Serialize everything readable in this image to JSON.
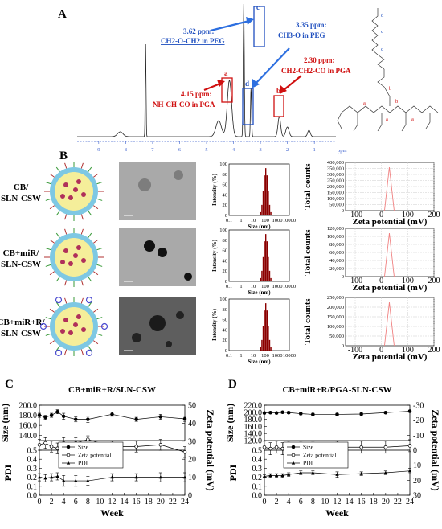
{
  "panels": [
    "A",
    "B",
    "C",
    "D"
  ],
  "nmr": {
    "peak_labels": [
      "a",
      "b",
      "c",
      "d"
    ],
    "annotations": [
      {
        "ppm": "3.62 ppm:",
        "text": "CH2-O-CH2 in PEG",
        "color": "#1f4fbf"
      },
      {
        "ppm": "3.35 ppm:",
        "text": "CH3-O in PEG",
        "color": "#1f4fbf"
      },
      {
        "ppm": "2.30 ppm:",
        "text": "CH2-CH2-CO in PGA",
        "color": "#d01010"
      },
      {
        "ppm": "4.15 ppm:",
        "text": "NH-CH-CO in PGA",
        "color": "#d01010"
      }
    ],
    "axis_ticks": [
      "9",
      "8",
      "7",
      "6",
      "5",
      "4",
      "3",
      "2",
      "1"
    ],
    "axis_unit": "ppm",
    "structure_labels": [
      "d",
      "c",
      "c",
      "b",
      "a",
      "b",
      "a",
      "a"
    ]
  },
  "panelB": {
    "rows": [
      {
        "line1": "CB/",
        "line2": "SLN-CSW"
      },
      {
        "line1": "CB+miR/",
        "line2": "SLN-CSW"
      },
      {
        "line1": "CB+miR+R/",
        "line2": "SLN-CSW"
      }
    ],
    "dls": {
      "ylabel": "Intensity (%)",
      "xlabel": "Size (nm)",
      "yticks": [
        "100",
        "80",
        "60",
        "40",
        "20",
        "0"
      ],
      "xticks": [
        "0.1",
        "1",
        "10",
        "100",
        "1000",
        "10000"
      ]
    },
    "zeta": {
      "ylabel": "Total counts",
      "xlabel": "Zeta potential (mV)",
      "xticks": [
        "-100",
        "0",
        "100",
        "200"
      ],
      "yticks_rows": [
        [
          "400,000",
          "350,000",
          "300,000",
          "250,000",
          "200,000",
          "150,000",
          "100,000",
          "50,000",
          "0"
        ],
        [
          "120,000",
          "100,000",
          "80,000",
          "60,000",
          "40,000",
          "20,000",
          "0"
        ],
        [
          "250,000",
          "200,000",
          "150,000",
          "100,000",
          "50,000",
          "0"
        ]
      ]
    }
  },
  "chart_data": [
    {
      "type": "line",
      "panel": "C",
      "title": "CB+miR+R/SLN-CSW",
      "xlabel": "Week",
      "x": [
        0,
        1,
        2,
        3,
        4,
        6,
        8,
        12,
        16,
        20,
        24
      ],
      "xticks": [
        "0",
        "2",
        "4",
        "6",
        "8",
        "10",
        "12",
        "14",
        "16",
        "18",
        "20",
        "22",
        "24"
      ],
      "size_axis": {
        "label": "Size (nm)",
        "ticks": [
          "200.0",
          "180.0",
          "160.0",
          "140.0"
        ],
        "range": [
          130,
          200
        ]
      },
      "pdi_axis": {
        "label": "PDI",
        "ticks": [
          "0.5",
          "0.4",
          "0.3",
          "0.2",
          "0.1",
          "0.0"
        ],
        "range": [
          0,
          0.5
        ]
      },
      "zeta_axis": {
        "label": "Zeta potential (mV)",
        "ticks": [
          "50",
          "40",
          "30",
          "20",
          "10",
          "0"
        ],
        "range": [
          0,
          50
        ]
      },
      "series": [
        {
          "name": "Size",
          "values": [
            180,
            176,
            180,
            187,
            178,
            172,
            172,
            182,
            172,
            177,
            173
          ],
          "err": [
            4,
            4,
            4,
            4,
            6,
            5,
            6,
            4,
            4,
            5,
            5
          ]
        },
        {
          "name": "Zeta potential",
          "values": [
            28,
            29,
            27,
            26,
            29,
            29,
            31,
            27,
            27,
            28,
            24
          ],
          "err": [
            3,
            3,
            3,
            3,
            3,
            3,
            2,
            3,
            3,
            3,
            3
          ]
        },
        {
          "name": "PDI",
          "values": [
            0.2,
            0.19,
            0.2,
            0.21,
            0.16,
            0.16,
            0.16,
            0.2,
            0.2,
            0.2,
            0.2
          ],
          "err": [
            0.04,
            0.04,
            0.04,
            0.04,
            0.06,
            0.06,
            0.05,
            0.04,
            0.04,
            0.05,
            0.05
          ]
        }
      ]
    },
    {
      "type": "line",
      "panel": "D",
      "title": "CB+miR+R/PGA-SLN-CSW",
      "xlabel": "Week",
      "x": [
        0,
        1,
        2,
        3,
        4,
        6,
        8,
        12,
        16,
        20,
        24
      ],
      "xticks": [
        "0",
        "2",
        "4",
        "6",
        "8",
        "10",
        "12",
        "14",
        "16",
        "18",
        "20",
        "22",
        "24"
      ],
      "size_axis": {
        "label": "Size (nm)",
        "ticks": [
          "220.0",
          "200.0",
          "180.0",
          "160.0",
          "140.0",
          "120.0"
        ],
        "range": [
          120,
          220
        ]
      },
      "pdi_axis": {
        "label": "PDI",
        "ticks": [
          "0.5",
          "0.4",
          "0.3",
          "0.2",
          "0.1",
          "0.0"
        ],
        "range": [
          0,
          0.5
        ]
      },
      "zeta_axis": {
        "label": "Zeta potential (mV)",
        "ticks": [
          "-30",
          "-20",
          "-10",
          "0",
          "10",
          "20",
          "30"
        ],
        "range": [
          30,
          -30
        ]
      },
      "series": [
        {
          "name": "Size",
          "values": [
            198,
            199,
            198,
            200,
            199,
            196,
            194,
            194,
            195,
            199,
            203
          ],
          "err": [
            3,
            3,
            3,
            3,
            3,
            3,
            3,
            3,
            3,
            3,
            3
          ]
        },
        {
          "name": "Zeta potential",
          "values": [
            -2,
            -1,
            -2,
            -1,
            -2,
            -2,
            -2,
            -2,
            -2,
            -2,
            -3
          ],
          "err": [
            4,
            4,
            4,
            4,
            4,
            4,
            4,
            4,
            4,
            4,
            4
          ]
        },
        {
          "name": "PDI",
          "values": [
            0.21,
            0.22,
            0.22,
            0.22,
            0.23,
            0.25,
            0.25,
            0.23,
            0.24,
            0.25,
            0.27
          ],
          "err": [
            0.02,
            0.02,
            0.02,
            0.02,
            0.02,
            0.02,
            0.02,
            0.03,
            0.02,
            0.02,
            0.03
          ]
        }
      ]
    }
  ]
}
